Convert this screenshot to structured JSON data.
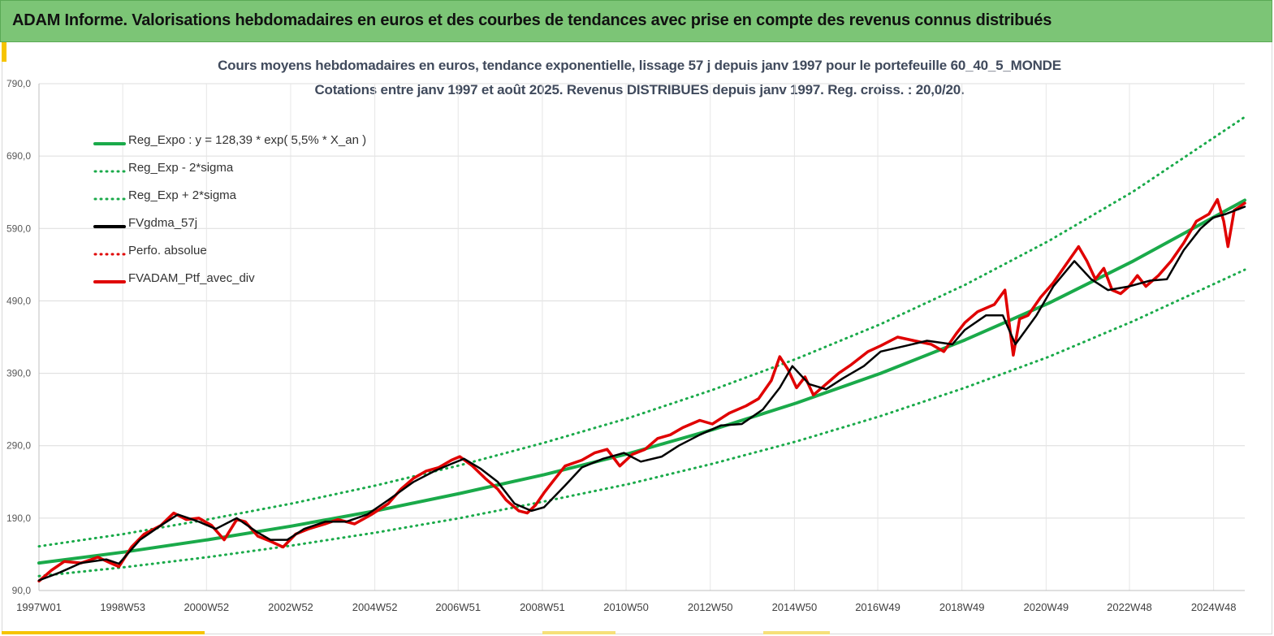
{
  "banner": {
    "title": "ADAM Informe. Valorisations hebdomadaires en euros et des courbes de tendances avec prise en compte des revenus connus distribués"
  },
  "chart_data": {
    "type": "line",
    "title": "Cours moyens hebdomadaires  en euros, tendance exponentielle, lissage 57 j depuis janv 1997 pour le portefeuille 60_40_5_MONDE",
    "subtitle": "Cotations  entre janv 1997 et août 2025. Revenus DISTRIBUES depuis janv 1997. Reg. croiss. : 20,0/20.",
    "xlabel": "",
    "ylabel": "",
    "ylim": [
      90,
      790
    ],
    "xlim": [
      1997.0,
      2025.65
    ],
    "y_ticks": [
      "90,0",
      "190,0",
      "290,0",
      "390,0",
      "490,0",
      "590,0",
      "690,0",
      "790,0"
    ],
    "x_ticks": [
      {
        "label": "1997W01",
        "t": 1997.0
      },
      {
        "label": "1998W53",
        "t": 1998.99
      },
      {
        "label": "2000W52",
        "t": 2000.98
      },
      {
        "label": "2002W52",
        "t": 2002.98
      },
      {
        "label": "2004W52",
        "t": 2004.98
      },
      {
        "label": "2006W51",
        "t": 2006.96
      },
      {
        "label": "2008W51",
        "t": 2008.96
      },
      {
        "label": "2010W50",
        "t": 2010.95
      },
      {
        "label": "2012W50",
        "t": 2012.95
      },
      {
        "label": "2014W50",
        "t": 2014.95
      },
      {
        "label": "2016W49",
        "t": 2016.93
      },
      {
        "label": "2018W49",
        "t": 2018.93
      },
      {
        "label": "2020W49",
        "t": 2020.93
      },
      {
        "label": "2022W48",
        "t": 2022.91
      },
      {
        "label": "2024W48",
        "t": 2024.91
      }
    ],
    "grid": true,
    "legend_position": "top-left",
    "series": [
      {
        "name": "Reg_Expo : y = 128,39 * exp( 5,5% *  X_an )",
        "color": "#1aaa4a",
        "style": "solid",
        "width": 4,
        "x": [
          1997.0,
          1999.0,
          2001.0,
          2003.0,
          2005.0,
          2007.0,
          2009.0,
          2011.0,
          2013.0,
          2015.0,
          2017.0,
          2019.0,
          2021.0,
          2023.0,
          2025.65
        ],
        "y": [
          128,
          143,
          160,
          179,
          200,
          224,
          250,
          279,
          312,
          349,
          390,
          436,
          487,
          545,
          629
        ]
      },
      {
        "name": "Reg_Exp - 2*sigma",
        "color": "#1aaa4a",
        "style": "dotted",
        "width": 3,
        "x": [
          1997.0,
          1999.0,
          2001.0,
          2003.0,
          2005.0,
          2007.0,
          2009.0,
          2011.0,
          2013.0,
          2015.0,
          2017.0,
          2019.0,
          2021.0,
          2023.0,
          2025.65
        ],
        "y": [
          110,
          122,
          136,
          152,
          170,
          190,
          213,
          237,
          265,
          296,
          331,
          370,
          413,
          462,
          533
        ]
      },
      {
        "name": "Reg_Exp + 2*sigma",
        "color": "#1aaa4a",
        "style": "dotted",
        "width": 3,
        "x": [
          1997.0,
          1999.0,
          2001.0,
          2003.0,
          2005.0,
          2007.0,
          2009.0,
          2011.0,
          2013.0,
          2015.0,
          2017.0,
          2019.0,
          2021.0,
          2023.0,
          2025.65
        ],
        "y": [
          151,
          168,
          188,
          210,
          235,
          263,
          294,
          328,
          367,
          410,
          458,
          512,
          573,
          641,
          744
        ]
      },
      {
        "name": "FVgdma_57j",
        "color": "#000000",
        "style": "solid",
        "width": 2.5,
        "x": [
          1997.0,
          1997.5,
          1998.0,
          1998.6,
          1998.9,
          1999.4,
          1999.9,
          2000.3,
          2000.8,
          2001.2,
          2001.7,
          2002.2,
          2002.5,
          2002.9,
          2003.3,
          2003.8,
          2004.3,
          2004.8,
          2005.3,
          2005.9,
          2006.4,
          2006.8,
          2007.1,
          2007.5,
          2007.9,
          2008.3,
          2008.7,
          2009.0,
          2009.5,
          2009.9,
          2010.4,
          2010.9,
          2011.3,
          2011.8,
          2012.2,
          2012.7,
          2013.2,
          2013.7,
          2014.2,
          2014.6,
          2014.9,
          2015.3,
          2015.7,
          2016.1,
          2016.6,
          2017.0,
          2017.6,
          2018.1,
          2018.7,
          2019.0,
          2019.5,
          2019.9,
          2020.2,
          2020.7,
          2021.1,
          2021.6,
          2022.0,
          2022.4,
          2022.9,
          2023.4,
          2023.8,
          2024.2,
          2024.6,
          2024.9,
          2025.2,
          2025.65
        ],
        "y": [
          104,
          115,
          128,
          133,
          127,
          160,
          180,
          195,
          185,
          175,
          190,
          170,
          160,
          160,
          175,
          185,
          185,
          195,
          215,
          240,
          255,
          265,
          272,
          258,
          240,
          210,
          200,
          205,
          235,
          260,
          272,
          280,
          268,
          275,
          290,
          305,
          318,
          320,
          340,
          370,
          400,
          375,
          368,
          383,
          400,
          420,
          428,
          435,
          430,
          450,
          470,
          470,
          430,
          470,
          510,
          545,
          520,
          505,
          510,
          518,
          520,
          560,
          590,
          605,
          610,
          620
        ]
      },
      {
        "name": "Perfo. absolue",
        "color": "#e00000",
        "style": "dotted",
        "width": 3,
        "x": [],
        "y": []
      },
      {
        "name": "FVADAM_Ptf_avec_div",
        "color": "#e00000",
        "style": "solid",
        "width": 3.5,
        "x": [
          1997.0,
          1997.3,
          1997.6,
          1998.0,
          1998.4,
          1998.7,
          1998.9,
          1999.2,
          1999.5,
          1999.9,
          2000.2,
          2000.5,
          2000.8,
          2001.1,
          2001.4,
          2001.7,
          2001.9,
          2002.2,
          2002.5,
          2002.8,
          2003.1,
          2003.4,
          2003.8,
          2004.1,
          2004.5,
          2004.9,
          2005.3,
          2005.6,
          2005.9,
          2006.2,
          2006.5,
          2006.8,
          2007.0,
          2007.3,
          2007.6,
          2007.9,
          2008.1,
          2008.4,
          2008.6,
          2008.8,
          2009.0,
          2009.2,
          2009.5,
          2009.9,
          2010.2,
          2010.5,
          2010.8,
          2011.1,
          2011.4,
          2011.7,
          2012.0,
          2012.3,
          2012.7,
          2013.0,
          2013.4,
          2013.8,
          2014.1,
          2014.4,
          2014.6,
          2014.8,
          2015.0,
          2015.2,
          2015.4,
          2015.6,
          2015.8,
          2016.0,
          2016.3,
          2016.7,
          2017.0,
          2017.4,
          2017.8,
          2018.2,
          2018.5,
          2018.8,
          2019.0,
          2019.3,
          2019.7,
          2019.95,
          2020.15,
          2020.3,
          2020.5,
          2020.8,
          2021.1,
          2021.4,
          2021.7,
          2021.9,
          2022.1,
          2022.3,
          2022.5,
          2022.7,
          2022.9,
          2023.1,
          2023.3,
          2023.6,
          2023.9,
          2024.2,
          2024.5,
          2024.8,
          2025.0,
          2025.15,
          2025.25,
          2025.4,
          2025.65
        ],
        "y": [
          103,
          118,
          130,
          128,
          136,
          128,
          123,
          150,
          168,
          180,
          197,
          188,
          190,
          180,
          160,
          188,
          185,
          165,
          158,
          150,
          168,
          175,
          182,
          188,
          182,
          195,
          210,
          230,
          245,
          255,
          260,
          270,
          275,
          262,
          245,
          230,
          215,
          200,
          197,
          208,
          225,
          240,
          262,
          270,
          280,
          285,
          262,
          278,
          285,
          300,
          305,
          315,
          325,
          320,
          335,
          345,
          355,
          380,
          413,
          395,
          370,
          385,
          360,
          370,
          380,
          390,
          402,
          420,
          428,
          440,
          435,
          430,
          420,
          445,
          460,
          475,
          485,
          505,
          415,
          465,
          470,
          495,
          515,
          540,
          565,
          545,
          520,
          535,
          505,
          500,
          510,
          525,
          510,
          525,
          545,
          570,
          600,
          610,
          630,
          600,
          565,
          615,
          625
        ]
      }
    ]
  }
}
